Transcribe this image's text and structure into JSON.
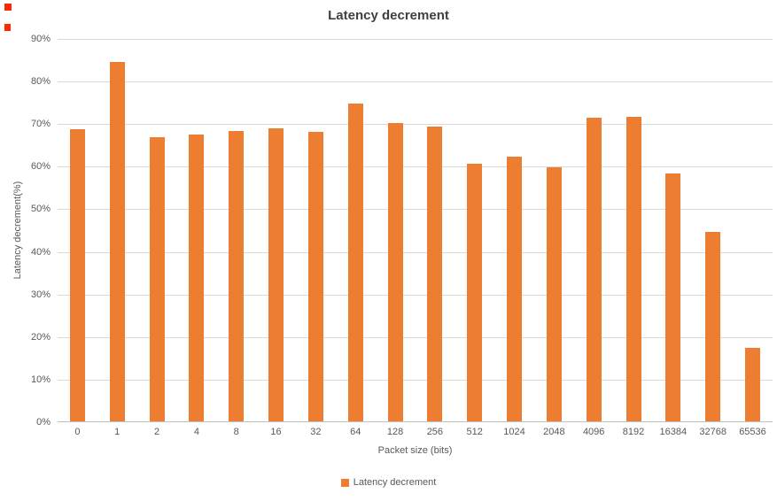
{
  "chart_data": {
    "type": "bar",
    "title": "Latency decrement",
    "xlabel": "Packet size (bits)",
    "ylabel": "Latency decrement(%)",
    "categories": [
      "0",
      "1",
      "2",
      "4",
      "8",
      "16",
      "32",
      "64",
      "128",
      "256",
      "512",
      "1024",
      "2048",
      "4096",
      "8192",
      "16384",
      "32768",
      "65536"
    ],
    "values": [
      68.7,
      84.5,
      67.0,
      67.6,
      68.3,
      69.0,
      68.2,
      74.8,
      70.3,
      69.5,
      60.6,
      62.3,
      59.9,
      71.5,
      71.8,
      58.4,
      44.7,
      17.5
    ],
    "ylim": [
      0,
      90
    ],
    "ytick_step": 10,
    "ytick_suffix": "%",
    "grid": true,
    "bar_color": "#ED7D31",
    "legend": {
      "position": "bottom",
      "label": "Latency decrement"
    }
  }
}
